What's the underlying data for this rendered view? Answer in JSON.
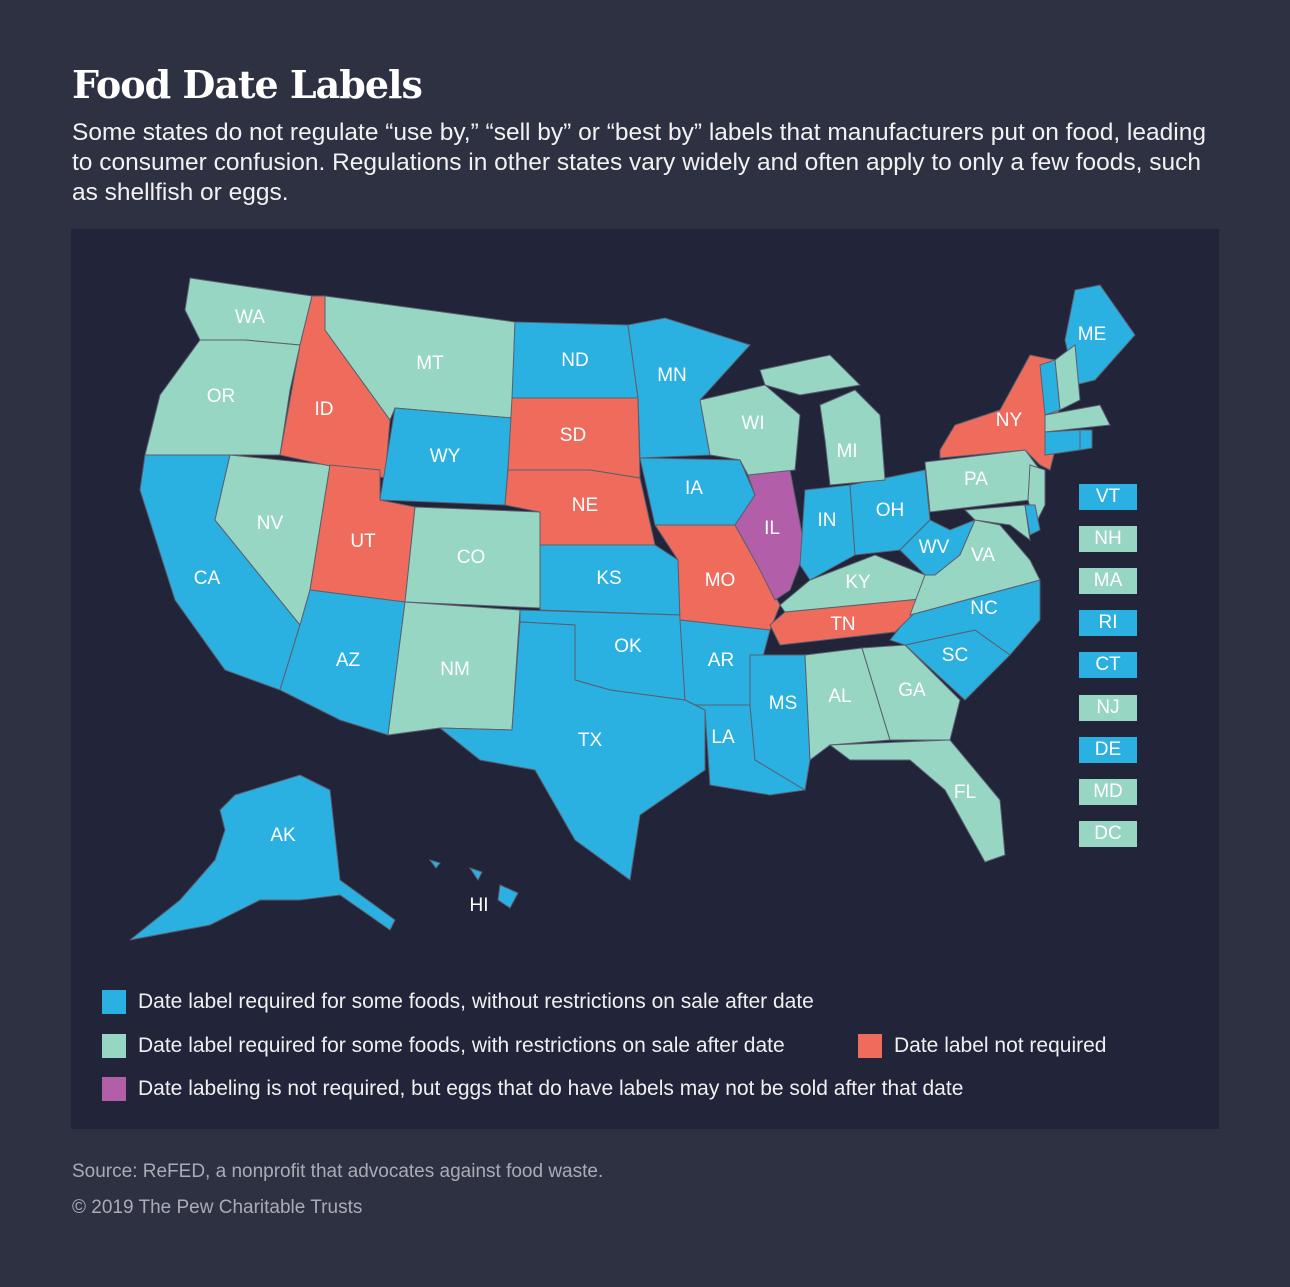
{
  "title": "Food Date Labels",
  "subtitle": "Some states do not regulate “use by,” “sell by” or “best by” labels that manufacturers put on food, leading to consumer confusion. Regulations in other states vary widely and often apply to only a few foods, such as shellfish or eggs.",
  "colors": {
    "background": "#2e3142",
    "panel": "#22243a",
    "blue": "#2bb0e2",
    "mint": "#98d6c4",
    "salmon": "#ef6c5d",
    "purple": "#b35ea9"
  },
  "legend": [
    {
      "key": "blue",
      "label": "Date label required for some foods, without restrictions on sale after date"
    },
    {
      "key": "mint",
      "label": "Date label required for some foods, with restrictions on sale after date"
    },
    {
      "key": "salmon",
      "label": "Date label not required"
    },
    {
      "key": "purple",
      "label": "Date labeling is not required, but eggs that do have labels may not be sold after that date"
    }
  ],
  "states": {
    "WA": "mint",
    "OR": "mint",
    "CA": "blue",
    "NV": "mint",
    "ID": "salmon",
    "MT": "mint",
    "WY": "blue",
    "UT": "salmon",
    "CO": "mint",
    "AZ": "blue",
    "NM": "mint",
    "ND": "blue",
    "SD": "salmon",
    "NE": "salmon",
    "KS": "blue",
    "OK": "blue",
    "TX": "blue",
    "MN": "blue",
    "IA": "blue",
    "MO": "salmon",
    "AR": "blue",
    "LA": "blue",
    "WI": "mint",
    "IL": "purple",
    "MI": "mint",
    "IN": "blue",
    "OH": "blue",
    "KY": "mint",
    "TN": "salmon",
    "MS": "blue",
    "AL": "mint",
    "GA": "mint",
    "FL": "mint",
    "SC": "blue",
    "NC": "blue",
    "WV": "blue",
    "VA": "mint",
    "PA": "mint",
    "NY": "salmon",
    "ME": "blue",
    "AK": "blue",
    "HI": "blue",
    "VT": "blue",
    "NH": "mint",
    "MA": "mint",
    "RI": "blue",
    "CT": "blue",
    "NJ": "mint",
    "DE": "blue",
    "MD": "mint",
    "DC": "mint"
  },
  "small_states": [
    "VT",
    "NH",
    "MA",
    "RI",
    "CT",
    "NJ",
    "DE",
    "MD",
    "DC"
  ],
  "source": "Source: ReFED, a nonprofit that advocates against food waste.",
  "copyright": "© 2019 The Pew Charitable Trusts"
}
